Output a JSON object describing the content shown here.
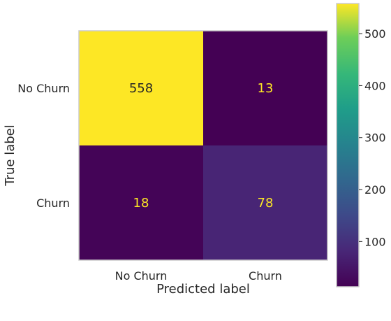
{
  "chart_data": {
    "type": "heatmap",
    "title": "",
    "xlabel": "Predicted label",
    "ylabel": "True label",
    "x_categories": [
      "No Churn",
      "Churn"
    ],
    "y_categories": [
      "No Churn",
      "Churn"
    ],
    "values": [
      [
        558,
        13
      ],
      [
        18,
        78
      ]
    ],
    "colormap": "viridis",
    "colorbar": {
      "ticks": [
        100,
        200,
        300,
        400,
        500
      ],
      "range": [
        13,
        558
      ]
    },
    "grid": false
  },
  "colors": {
    "high": "#fde725",
    "low": "#440154",
    "mid_low": "#472c7a",
    "text_on_dark": "#fde725",
    "text_on_light": "#262626"
  }
}
